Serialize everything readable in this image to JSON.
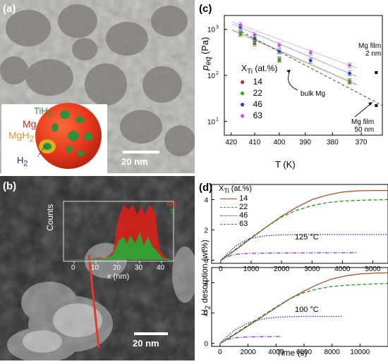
{
  "panels": {
    "a": {
      "label": "(a)",
      "scale_bar": "20 nm",
      "inset_labels": [
        "TiH",
        "Mg",
        "MgH",
        "H"
      ],
      "inset_subscripts": [
        "2",
        "2",
        "2"
      ]
    },
    "b": {
      "label": "(b)",
      "scale_bar": "20 nm",
      "inset_legend": [
        "Mg",
        "Ti"
      ],
      "inset_xlabel": "x (nm)",
      "inset_ylabel": "Counts",
      "inset_xticks": [
        "0",
        "10",
        "20",
        "30",
        "40"
      ]
    },
    "c": {
      "label": "(c)",
      "ylabel_main": "p",
      "ylabel_sub": "eq",
      "ylabel_unit": "(Pa)",
      "xlabel": "T (K)",
      "legend_title_main": "X",
      "legend_title_sub": "Ti",
      "legend_title_unit": "(at.%)",
      "annotations": {
        "bulk": "bulk Mg",
        "film2_line1": "Mg film",
        "film2_line2": "2 nm",
        "film50_line1": "Mg film",
        "film50_line2": "50 nm"
      },
      "xticks": [
        "420",
        "410",
        "400",
        "390",
        "380",
        "370"
      ],
      "yticks_base": [
        "10",
        "10",
        "10"
      ],
      "yticks_exp": [
        "1",
        "2",
        "3"
      ]
    },
    "d": {
      "label": "(d)",
      "ylabel_main": "H",
      "ylabel_sub": "2",
      "ylabel_rest": " desorption  (wt%)",
      "xlabel": "Time (s)",
      "legend_title_main": "X",
      "legend_title_sub": "Ti",
      "legend_title_unit": "(at.%)",
      "top_temp": "125 °C",
      "bottom_temp": "100 °C",
      "top_xticks": [
        "0",
        "1000",
        "2000",
        "3000",
        "4000",
        "5000"
      ],
      "bottom_xticks": [
        "0",
        "2000",
        "4000",
        "6000",
        "8000",
        "10000"
      ],
      "yticks": [
        "0",
        "2",
        "4"
      ]
    }
  },
  "chart_data": [
    {
      "type": "scatter",
      "panel": "c",
      "x_scale": "reciprocal",
      "y_scale": "log",
      "xlim": [
        423,
        363
      ],
      "ylim": [
        5,
        2000
      ],
      "series": [
        {
          "name": "14",
          "color": "#b5302a",
          "x": [
            416,
            410,
            400,
            374
          ],
          "y": [
            800,
            490,
            215,
            72
          ]
        },
        {
          "name": "22",
          "color": "#3aa63a",
          "x": [
            416,
            410,
            400,
            374
          ],
          "y": [
            820,
            520,
            225,
            75
          ]
        },
        {
          "name": "46",
          "color": "#2d3fc4",
          "x": [
            416,
            410,
            400,
            388,
            374
          ],
          "y": [
            1100,
            640,
            330,
            210,
            110
          ]
        },
        {
          "name": "63",
          "color": "#b35fd6",
          "x": [
            416,
            410,
            400,
            388,
            374
          ],
          "y": [
            1250,
            760,
            450,
            310,
            165
          ]
        }
      ],
      "extra_points": [
        {
          "label": "Mg film 2 nm",
          "x": 365,
          "y": 115
        },
        {
          "label": "Mg film 50 nm",
          "x": 365,
          "y": 22
        }
      ]
    },
    {
      "type": "line",
      "panel": "d-top",
      "title": "125 °C",
      "xlim": [
        -300,
        5500
      ],
      "ylim": [
        -0.2,
        5
      ],
      "series": [
        {
          "name": "14",
          "color": "#a0522d",
          "style": "solid",
          "x": [
            0,
            500,
            1000,
            1500,
            2000,
            2500,
            3000,
            3500,
            4000,
            4500,
            5000,
            5500
          ],
          "y": [
            0,
            0.7,
            1.45,
            2.2,
            2.9,
            3.5,
            4.0,
            4.3,
            4.5,
            4.58,
            4.6,
            4.6
          ]
        },
        {
          "name": "22",
          "color": "#2e8b2e",
          "style": "dash",
          "x": [
            0,
            500,
            1000,
            1500,
            2000,
            2500,
            3000,
            3500,
            4000,
            4500,
            5000,
            5500
          ],
          "y": [
            0,
            0.75,
            1.5,
            2.2,
            2.85,
            3.3,
            3.6,
            3.8,
            3.9,
            3.95,
            3.98,
            4.0
          ]
        },
        {
          "name": "46",
          "color": "#1f2fbf",
          "style": "dot",
          "x": [
            0,
            250,
            500,
            750,
            1000,
            1500,
            2000,
            3000,
            4000,
            5500
          ],
          "y": [
            0,
            0.5,
            0.95,
            1.25,
            1.45,
            1.62,
            1.68,
            1.7,
            1.7,
            1.7
          ]
        },
        {
          "name": "63",
          "color": "#8a3ac2",
          "style": "dashdot",
          "x": [
            0,
            200,
            400,
            700,
            1000,
            2000,
            3000,
            4500
          ],
          "y": [
            0,
            0.22,
            0.36,
            0.43,
            0.46,
            0.48,
            0.49,
            0.5
          ]
        }
      ]
    },
    {
      "type": "line",
      "panel": "d-bottom",
      "title": "100 °C",
      "xlim": [
        -600,
        12000
      ],
      "ylim": [
        -0.2,
        5
      ],
      "series": [
        {
          "name": "14",
          "color": "#a0522d",
          "style": "solid",
          "x": [
            0,
            1000,
            2000,
            3000,
            4000,
            5000,
            6000,
            7000,
            8000,
            9000,
            10000,
            11000,
            12000
          ],
          "y": [
            0,
            0.55,
            1.15,
            1.75,
            2.35,
            2.95,
            3.45,
            3.9,
            4.25,
            4.45,
            4.58,
            4.63,
            4.65
          ]
        },
        {
          "name": "22",
          "color": "#2e8b2e",
          "style": "dash",
          "x": [
            0,
            1000,
            2000,
            3000,
            4000,
            5000,
            6000,
            7000,
            8000,
            9000,
            10000,
            11000,
            12000
          ],
          "y": [
            0,
            0.6,
            1.2,
            1.8,
            2.4,
            2.95,
            3.35,
            3.6,
            3.75,
            3.83,
            3.88,
            3.92,
            3.95
          ]
        },
        {
          "name": "46",
          "color": "#1f2fbf",
          "style": "dot",
          "x": [
            0,
            500,
            1000,
            2000,
            3000,
            4000,
            5000,
            6000,
            8700
          ],
          "y": [
            0,
            0.45,
            0.85,
            1.35,
            1.6,
            1.72,
            1.76,
            1.78,
            1.78
          ]
        },
        {
          "name": "63",
          "color": "#8a3ac2",
          "style": "dashdot",
          "x": [
            0,
            500,
            1000,
            2000,
            3000,
            4400
          ],
          "y": [
            0,
            0.25,
            0.36,
            0.42,
            0.44,
            0.45
          ]
        }
      ]
    }
  ]
}
